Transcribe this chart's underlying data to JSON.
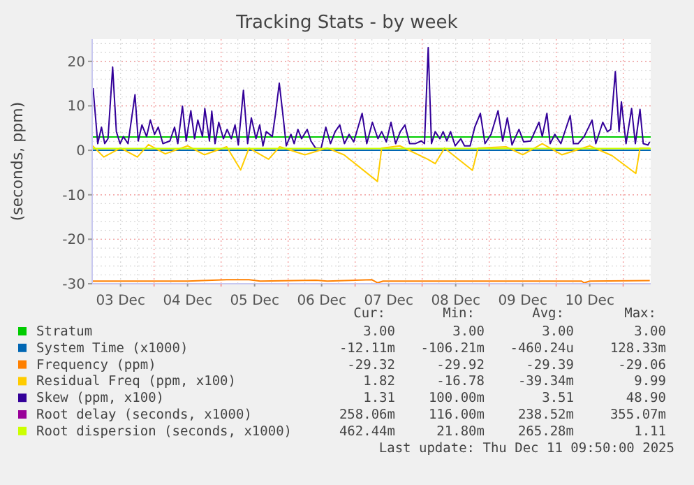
{
  "chart_data": {
    "type": "line",
    "title": "Tracking Stats - by week",
    "ylabel": "(seconds, ppm)",
    "xlim": [
      "2025-12-03T01:50",
      "2025-12-11T09:50"
    ],
    "xticks": [
      {
        "value": "2025-12-03T12:00",
        "label": "03 Dec"
      },
      {
        "value": "2025-12-04T00:00",
        "label": null
      },
      {
        "value": "2025-12-04T12:00",
        "label": "04 Dec"
      },
      {
        "value": "2025-12-05T00:00",
        "label": null
      },
      {
        "value": "2025-12-05T12:00",
        "label": "05 Dec"
      },
      {
        "value": "2025-12-06T00:00",
        "label": null
      },
      {
        "value": "2025-12-06T12:00",
        "label": "06 Dec"
      },
      {
        "value": "2025-12-07T00:00",
        "label": null
      },
      {
        "value": "2025-12-07T12:00",
        "label": "07 Dec"
      },
      {
        "value": "2025-12-08T00:00",
        "label": null
      },
      {
        "value": "2025-12-08T12:00",
        "label": "08 Dec"
      },
      {
        "value": "2025-12-09T00:00",
        "label": null
      },
      {
        "value": "2025-12-09T12:00",
        "label": "09 Dec"
      },
      {
        "value": "2025-12-10T00:00",
        "label": null
      },
      {
        "value": "2025-12-10T12:00",
        "label": "10 Dec"
      },
      {
        "value": "2025-12-11T00:00",
        "label": null
      }
    ],
    "ylim": [
      -30,
      25
    ],
    "yticks": [
      -30,
      -20,
      -10,
      0,
      10,
      20
    ],
    "grid": true,
    "legend": "bottom",
    "line_style": "solid",
    "marker": "none",
    "series": [
      {
        "name": "Stratum",
        "color": "#00cc00",
        "x": [
          "2025-12-03T01:50",
          "2025-12-11T09:50"
        ],
        "values": [
          3,
          3
        ]
      },
      {
        "name": "System Time (x1000)",
        "color": "#0066b3",
        "x": [
          "2025-12-03T01:50",
          "2025-12-11T09:50"
        ],
        "values": [
          0,
          0
        ]
      },
      {
        "name": "Frequency (ppm)",
        "color": "#ff8000",
        "x": [
          "2025-12-03T02:00",
          "2025-12-04T12:00",
          "2025-12-05T02:00",
          "2025-12-05T10:00",
          "2025-12-05T14:00",
          "2025-12-06T10:00",
          "2025-12-06T14:00",
          "2025-12-07T06:00",
          "2025-12-07T08:00",
          "2025-12-07T10:00",
          "2025-12-10T09:00",
          "2025-12-10T10:00",
          "2025-12-10T12:00",
          "2025-12-11T09:30"
        ],
        "values": [
          -29.4,
          -29.4,
          -29.1,
          -29.1,
          -29.4,
          -29.2,
          -29.4,
          -29.1,
          -29.8,
          -29.4,
          -29.4,
          -29.8,
          -29.4,
          -29.3
        ]
      },
      {
        "name": "Residual Freq (ppm, x100)",
        "color": "#ffcc00",
        "x": [
          "2025-12-03T02:00",
          "2025-12-03T06:00",
          "2025-12-03T12:00",
          "2025-12-03T18:00",
          "2025-12-03T22:00",
          "2025-12-04T04:00",
          "2025-12-04T12:00",
          "2025-12-04T18:00",
          "2025-12-05T02:00",
          "2025-12-05T07:00",
          "2025-12-05T10:00",
          "2025-12-05T17:00",
          "2025-12-05T21:00",
          "2025-12-06T06:00",
          "2025-12-06T14:00",
          "2025-12-06T20:00",
          "2025-12-07T08:00",
          "2025-12-07T09:30",
          "2025-12-07T16:00",
          "2025-12-08T02:00",
          "2025-12-08T04:40",
          "2025-12-08T08:00",
          "2025-12-08T18:00",
          "2025-12-08T20:00",
          "2025-12-09T06:00",
          "2025-12-09T12:00",
          "2025-12-09T19:00",
          "2025-12-10T02:00",
          "2025-12-10T12:00",
          "2025-12-10T20:00",
          "2025-12-11T04:30",
          "2025-12-11T06:00",
          "2025-12-11T09:30"
        ],
        "values": [
          1.0,
          -1.5,
          0.5,
          -1.5,
          1.3,
          -0.8,
          1.0,
          -1.0,
          0.8,
          -4.4,
          0.5,
          -2.0,
          0.8,
          -1.0,
          0.5,
          -1.0,
          -7.0,
          0.5,
          1.0,
          -2.0,
          -3.0,
          0.5,
          -4.5,
          0.5,
          0.8,
          -1.0,
          1.5,
          -1.0,
          1.0,
          -1.2,
          -5.2,
          0.5,
          0.5
        ]
      },
      {
        "name": "Skew (ppm, x100)",
        "color": "#330099",
        "x": [
          "2025-12-03T02:10",
          "2025-12-03T03:50",
          "2025-12-03T05:10",
          "2025-12-03T06:20",
          "2025-12-03T07:30",
          "2025-12-03T09:10",
          "2025-12-03T10:30",
          "2025-12-03T11:50",
          "2025-12-03T13:00",
          "2025-12-03T14:40",
          "2025-12-03T17:10",
          "2025-12-03T18:20",
          "2025-12-03T19:40",
          "2025-12-03T21:20",
          "2025-12-03T22:40",
          "2025-12-04T00:10",
          "2025-12-04T01:30",
          "2025-12-04T03:10",
          "2025-12-04T05:40",
          "2025-12-04T07:20",
          "2025-12-04T08:30",
          "2025-12-04T10:10",
          "2025-12-04T11:30",
          "2025-12-04T13:10",
          "2025-12-04T14:30",
          "2025-12-04T15:40",
          "2025-12-04T17:20",
          "2025-12-04T18:10",
          "2025-12-04T19:50",
          "2025-12-04T20:40",
          "2025-12-04T21:50",
          "2025-12-04T23:10",
          "2025-12-05T00:50",
          "2025-12-05T02:10",
          "2025-12-05T03:40",
          "2025-12-05T05:00",
          "2025-12-05T06:10",
          "2025-12-05T08:00",
          "2025-12-05T09:30",
          "2025-12-05T10:50",
          "2025-12-05T12:30",
          "2025-12-05T13:50",
          "2025-12-05T15:00",
          "2025-12-05T16:10",
          "2025-12-05T18:20",
          "2025-12-05T19:30",
          "2025-12-05T20:50",
          "2025-12-05T22:10",
          "2025-12-05T23:20",
          "2025-12-06T01:00",
          "2025-12-06T02:10",
          "2025-12-06T03:30",
          "2025-12-06T04:50",
          "2025-12-06T06:50",
          "2025-12-06T08:10",
          "2025-12-06T09:50",
          "2025-12-06T11:50",
          "2025-12-06T13:30",
          "2025-12-06T15:10",
          "2025-12-06T16:50",
          "2025-12-06T18:30",
          "2025-12-06T20:10",
          "2025-12-06T21:50",
          "2025-12-06T23:30",
          "2025-12-07T02:30",
          "2025-12-07T04:10",
          "2025-12-07T06:10",
          "2025-12-07T08:10",
          "2025-12-07T09:30",
          "2025-12-07T11:10",
          "2025-12-07T12:50",
          "2025-12-07T14:30",
          "2025-12-07T16:10",
          "2025-12-07T17:50",
          "2025-12-07T19:30",
          "2025-12-07T21:30",
          "2025-12-07T23:40",
          "2025-12-08T00:50",
          "2025-12-08T02:10",
          "2025-12-08T03:20",
          "2025-12-08T04:40",
          "2025-12-08T06:20",
          "2025-12-08T07:30",
          "2025-12-08T08:50",
          "2025-12-08T10:10",
          "2025-12-08T11:50",
          "2025-12-08T13:50",
          "2025-12-08T15:10",
          "2025-12-08T17:10",
          "2025-12-08T18:50",
          "2025-12-08T20:50",
          "2025-12-08T22:30",
          "2025-12-09T00:40",
          "2025-12-09T03:10",
          "2025-12-09T04:50",
          "2025-12-09T06:30",
          "2025-12-09T08:10",
          "2025-12-09T10:40",
          "2025-12-09T12:20",
          "2025-12-09T14:50",
          "2025-12-09T17:50",
          "2025-12-09T19:00",
          "2025-12-09T20:40",
          "2025-12-09T21:50",
          "2025-12-09T23:30",
          "2025-12-10T01:40",
          "2025-12-10T05:00",
          "2025-12-10T06:10",
          "2025-12-10T07:50",
          "2025-12-10T10:00",
          "2025-12-10T12:50",
          "2025-12-10T14:10",
          "2025-12-10T16:40",
          "2025-12-10T18:20",
          "2025-12-10T19:30",
          "2025-12-10T21:10",
          "2025-12-10T22:30",
          "2025-12-10T23:20",
          "2025-12-11T01:00",
          "2025-12-11T03:00",
          "2025-12-11T04:20",
          "2025-12-11T06:00",
          "2025-12-11T07:10",
          "2025-12-11T08:50",
          "2025-12-11T09:30"
        ],
        "values": [
          14.0,
          1.5,
          5.2,
          1.5,
          2.6,
          18.7,
          4.2,
          1.5,
          3.1,
          1.5,
          12.5,
          2.1,
          5.7,
          3.1,
          6.8,
          3.6,
          5.2,
          1.5,
          2.1,
          5.2,
          1.5,
          9.9,
          2.1,
          8.9,
          2.6,
          6.8,
          3.1,
          9.4,
          2.1,
          8.8,
          1.5,
          6.3,
          2.6,
          4.7,
          2.6,
          5.7,
          1.2,
          13.5,
          1.5,
          7.3,
          2.6,
          5.7,
          1.0,
          4.2,
          3.1,
          8.3,
          15.1,
          7.8,
          1.0,
          3.6,
          1.5,
          4.7,
          2.6,
          4.7,
          2.1,
          0.5,
          0.5,
          5.2,
          1.5,
          4.2,
          5.7,
          1.5,
          3.6,
          1.9,
          8.3,
          1.5,
          6.3,
          2.6,
          4.2,
          1.9,
          6.3,
          1.5,
          4.2,
          5.7,
          1.5,
          1.5,
          2.1,
          1.5,
          23.1,
          1.5,
          4.2,
          2.6,
          4.2,
          2.1,
          4.2,
          1.0,
          2.6,
          1.0,
          1.0,
          5.2,
          8.3,
          1.5,
          3.6,
          8.9,
          2.1,
          7.3,
          1.2,
          4.7,
          1.9,
          2.1,
          6.3,
          3.1,
          8.3,
          1.5,
          3.6,
          1.5,
          7.8,
          1.5,
          1.5,
          3.1,
          6.8,
          1.5,
          6.3,
          4.2,
          4.7,
          17.7,
          4.2,
          10.9,
          1.5,
          9.4,
          1.5,
          9.2,
          1.5,
          1.2,
          1.9
        ]
      },
      {
        "name": "Root delay (seconds, x1000)",
        "color": "#990099",
        "values": [
          null
        ]
      },
      {
        "name": "Root dispersion (seconds, x1000)",
        "color": "#ccff00",
        "x": [
          "2025-12-03T01:50",
          "2025-12-11T09:50"
        ],
        "values": [
          0.4,
          0.4
        ]
      }
    ],
    "annotations": [
      "Cur:",
      "Min:",
      "Avg:",
      "Max:",
      "3.00",
      "3.00",
      "3.00",
      "3.00",
      "-12.11m",
      "-106.21m",
      "-460.24u",
      "128.33m",
      "-29.32",
      "-29.92",
      "-29.39",
      "-29.06",
      "1.82",
      "-16.78",
      "-39.34m",
      "9.99",
      "1.31",
      "100.00m",
      "3.51",
      "48.90",
      "258.06m",
      "116.00m",
      "238.52m",
      "355.07m",
      "462.44m",
      "21.80m",
      "265.28m",
      "1.11",
      "Last update: Thu Dec 11 09:50:00 2025"
    ]
  }
}
